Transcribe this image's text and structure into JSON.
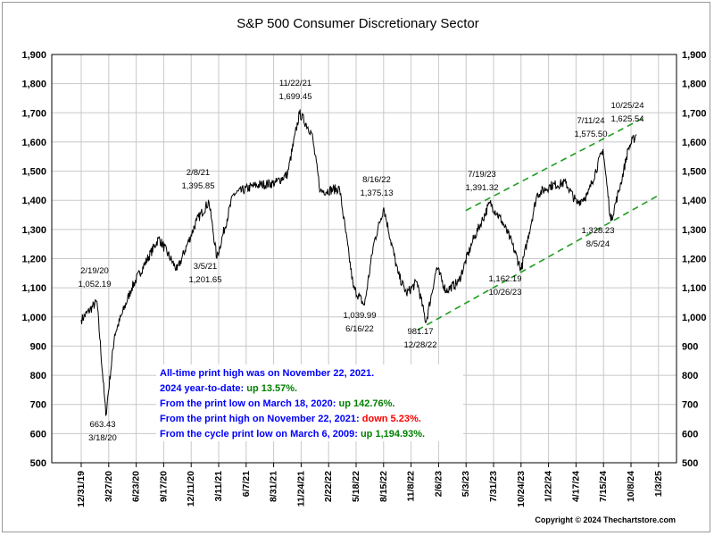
{
  "chart_data": {
    "type": "line",
    "title": "S&P 500 Consumer Discretionary Sector",
    "xlabel": "",
    "ylabel": "",
    "ylim": [
      500,
      1900
    ],
    "y_ticks": [
      "500",
      "600",
      "700",
      "800",
      "900",
      "1,000",
      "1,100",
      "1,200",
      "1,300",
      "1,400",
      "1,500",
      "1,600",
      "1,700",
      "1,800",
      "1,900"
    ],
    "x_ticks": [
      "12/31/19",
      "3/27/20",
      "6/23/20",
      "9/17/20",
      "12/11/20",
      "3/11/21",
      "6/7/21",
      "8/31/21",
      "11/24/21",
      "2/22/22",
      "5/18/22",
      "8/15/22",
      "11/8/22",
      "2/6/23",
      "5/3/23",
      "7/31/23",
      "10/24/23",
      "1/22/24",
      "4/17/24",
      "7/15/24",
      "10/8/24",
      "1/3/25"
    ],
    "grid": true,
    "series": [
      {
        "x": [
          "12/31/19",
          "2/19/20",
          "3/18/20",
          "4/15/20",
          "6/8/20",
          "9/2/20",
          "10/30/20",
          "12/31/20",
          "2/8/21",
          "3/5/21",
          "4/26/21",
          "7/1/21",
          "9/7/21",
          "10/15/21",
          "11/22/21",
          "12/31/21",
          "1/27/22",
          "3/29/22",
          "5/12/22",
          "6/16/22",
          "7/15/22",
          "8/16/22",
          "9/30/22",
          "10/27/22",
          "11/30/22",
          "12/28/22",
          "1/31/23",
          "3/1/23",
          "4/10/23",
          "5/25/23",
          "7/19/23",
          "8/25/23",
          "9/20/23",
          "10/26/23",
          "12/15/23",
          "1/26/24",
          "3/15/24",
          "4/19/24",
          "5/24/24",
          "7/11/24",
          "8/5/24",
          "9/6/24",
          "9/30/24",
          "10/25/24"
        ],
        "y": [
          990,
          1052.19,
          663.43,
          940,
          1100,
          1270,
          1160,
          1330,
          1395.85,
          1201.65,
          1420,
          1450,
          1460,
          1490,
          1699.45,
          1630,
          1430,
          1440,
          1100,
          1039.99,
          1250,
          1375.13,
          1150,
          1080,
          1120,
          981.17,
          1170,
          1090,
          1120,
          1260,
          1391.32,
          1330,
          1270,
          1162.19,
          1420,
          1450,
          1460,
          1390,
          1420,
          1575.5,
          1328.23,
          1460,
          1580,
          1625.54
        ]
      }
    ],
    "trendlines": [
      {
        "x": [
          "5/3/23",
          "11/21/24"
        ],
        "y": [
          1365,
          1685
        ]
      },
      {
        "x": [
          "12/1/22",
          "12/31/24"
        ],
        "y": [
          955,
          1415
        ]
      }
    ],
    "annotations": [
      {
        "date": "2/19/20",
        "value": "1,052.19"
      },
      {
        "date": "3/18/20",
        "value": "663.43"
      },
      {
        "date": "2/8/21",
        "value": "1,395.85"
      },
      {
        "date": "3/5/21",
        "value": "1,201.65"
      },
      {
        "date": "11/22/21",
        "value": "1,699.45"
      },
      {
        "date": "8/16/22",
        "value": "1,375.13"
      },
      {
        "date": "6/16/22",
        "value": "1,039.99"
      },
      {
        "date": "12/28/22",
        "value": "981.17"
      },
      {
        "date": "7/19/23",
        "value": "1,391.32"
      },
      {
        "date": "10/26/23",
        "value": "1,162.19"
      },
      {
        "date": "7/11/24",
        "value": "1,575.50"
      },
      {
        "date": "8/5/24",
        "value": "1,328.23"
      },
      {
        "date": "10/25/24",
        "value": "1,625.54"
      }
    ],
    "notes": [
      {
        "text": "All-time print high was on November 22, 2021.",
        "highlight": "",
        "color": "#0000ff"
      },
      {
        "text": "2024 year-to-date:  ",
        "highlight": "up 13.57%.",
        "color": "#008000"
      },
      {
        "text": "From the print low on March 18, 2020:  ",
        "highlight": "up 142.76%.",
        "color": "#008000"
      },
      {
        "text": "From the print high on November 22, 2021:  ",
        "highlight": "down 5.23%.",
        "color": "#ff0000"
      },
      {
        "text": "From the cycle print low on March 6, 2009:  ",
        "highlight": "up 1,194.93%.",
        "color": "#008000"
      }
    ],
    "copyright": "Copyright © 2024 Thechartstore.com",
    "colors": {
      "line": "#000000",
      "trend": "#1f9e1f",
      "note_text": "#0000ff",
      "grid": "#c8c8c8"
    }
  }
}
